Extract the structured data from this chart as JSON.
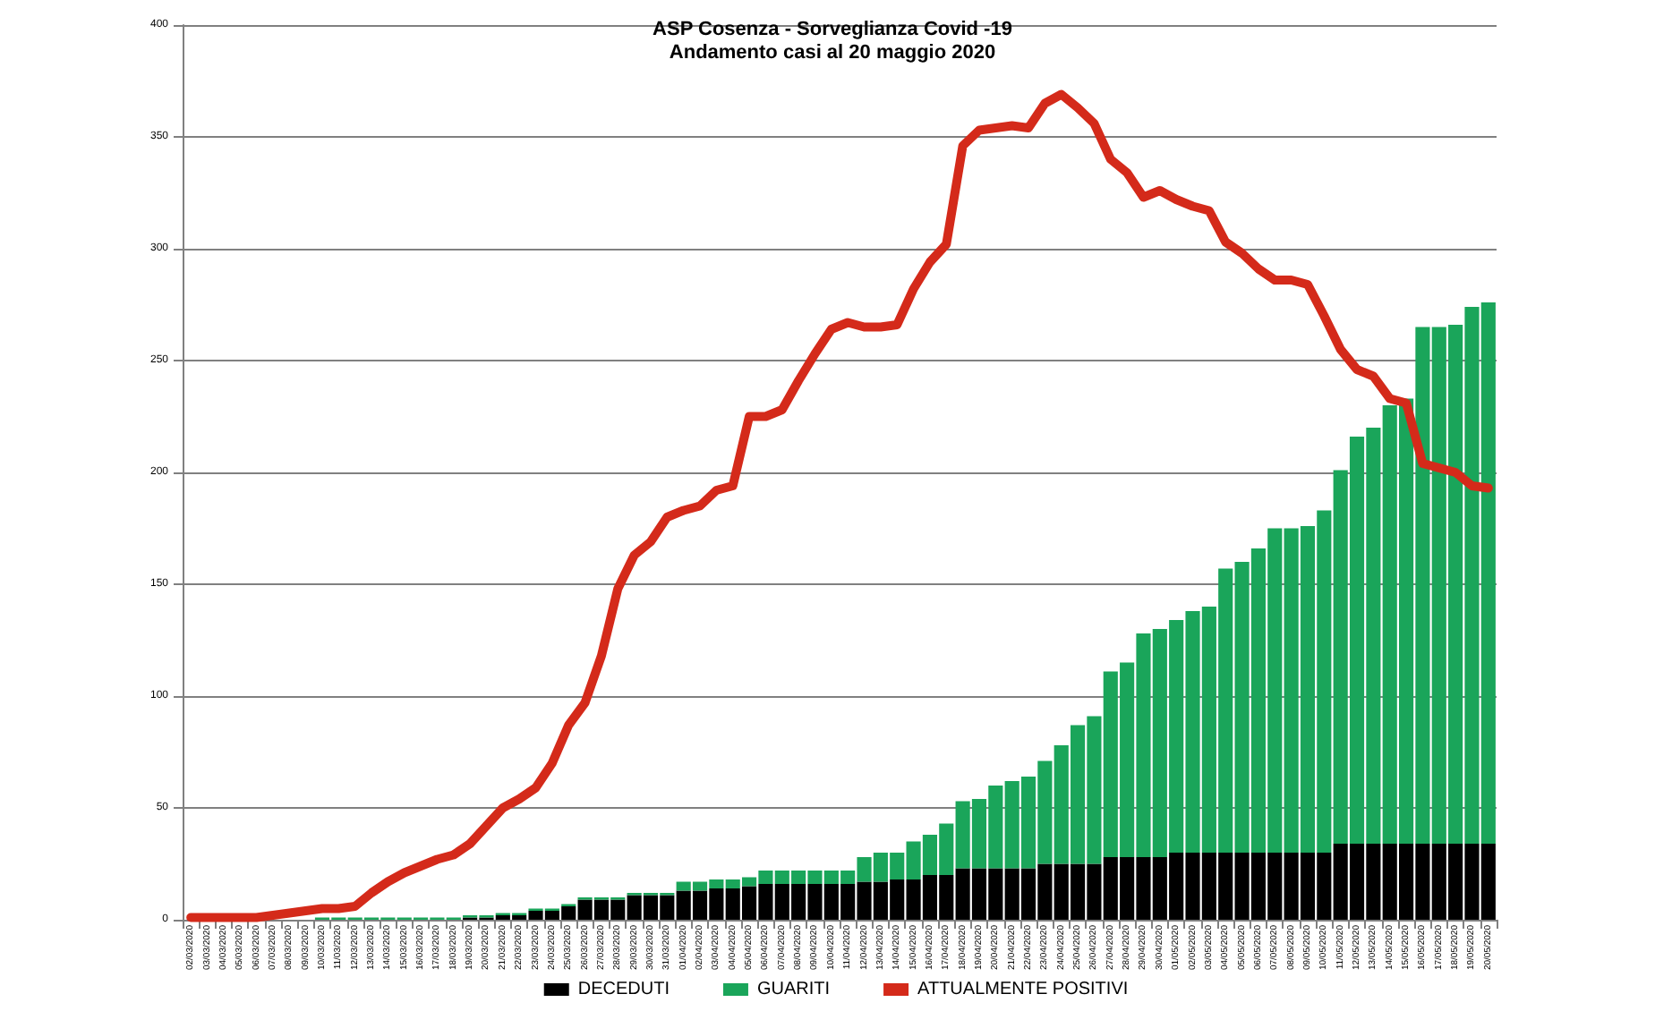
{
  "chart_data": {
    "type": "bar",
    "title": "ASP Cosenza - Sorveglianza Covid -19",
    "subtitle": "Andamento casi al 20 maggio 2020",
    "categories": [
      "02/03/2020",
      "03/03/2020",
      "04/03/2020",
      "05/03/2020",
      "06/03/2020",
      "07/03/2020",
      "08/03/2020",
      "09/03/2020",
      "10/03/2020",
      "11/03/2020",
      "12/03/2020",
      "13/03/2020",
      "14/03/2020",
      "15/03/2020",
      "16/03/2020",
      "17/03/2020",
      "18/03/2020",
      "19/03/2020",
      "20/03/2020",
      "21/03/2020",
      "22/03/2020",
      "23/03/2020",
      "24/03/2020",
      "25/03/2020",
      "26/03/2020",
      "27/03/2020",
      "28/03/2020",
      "29/03/2020",
      "30/03/2020",
      "31/03/2020",
      "01/04/2020",
      "02/04/2020",
      "03/04/2020",
      "04/04/2020",
      "05/04/2020",
      "06/04/2020",
      "07/04/2020",
      "08/04/2020",
      "09/04/2020",
      "10/04/2020",
      "11/04/2020",
      "12/04/2020",
      "13/04/2020",
      "14/04/2020",
      "15/04/2020",
      "16/04/2020",
      "17/04/2020",
      "18/04/2020",
      "19/04/2020",
      "20/04/2020",
      "21/04/2020",
      "22/04/2020",
      "23/04/2020",
      "24/04/2020",
      "25/04/2020",
      "26/04/2020",
      "27/04/2020",
      "28/04/2020",
      "29/04/2020",
      "30/04/2020",
      "01/05/2020",
      "02/05/2020",
      "03/05/2020",
      "04/05/2020",
      "05/05/2020",
      "06/05/2020",
      "07/05/2020",
      "08/05/2020",
      "09/05/2020",
      "10/05/2020",
      "11/05/2020",
      "12/05/2020",
      "13/05/2020",
      "14/05/2020",
      "15/05/2020",
      "16/05/2020",
      "17/05/2020",
      "18/05/2020",
      "19/05/2020",
      "20/05/2020"
    ],
    "stacked": true,
    "series": [
      {
        "name": "DECEDUTI",
        "color": "#000000",
        "values": [
          0,
          0,
          0,
          0,
          0,
          0,
          0,
          0,
          0,
          0,
          0,
          0,
          0,
          0,
          0,
          0,
          0,
          1,
          1,
          2,
          2,
          4,
          4,
          6,
          9,
          9,
          9,
          11,
          11,
          11,
          13,
          13,
          14,
          14,
          15,
          16,
          16,
          16,
          16,
          16,
          16,
          17,
          17,
          18,
          18,
          20,
          20,
          23,
          23,
          23,
          23,
          23,
          25,
          25,
          25,
          25,
          28,
          28,
          28,
          28,
          30,
          30,
          30,
          30,
          30,
          30,
          30,
          30,
          30,
          30,
          34,
          34,
          34,
          34,
          34,
          34,
          34,
          34,
          34,
          34
        ]
      },
      {
        "name": "GUARITI",
        "color": "#1aa55a",
        "values": [
          0,
          0,
          0,
          0,
          0,
          0,
          0,
          0,
          1,
          1,
          1,
          1,
          1,
          1,
          1,
          1,
          1,
          1,
          1,
          1,
          1,
          1,
          1,
          1,
          1,
          1,
          1,
          1,
          1,
          1,
          4,
          4,
          4,
          4,
          4,
          6,
          6,
          6,
          6,
          6,
          6,
          11,
          13,
          12,
          17,
          18,
          23,
          30,
          31,
          37,
          39,
          41,
          46,
          53,
          62,
          66,
          83,
          87,
          100,
          102,
          104,
          108,
          110,
          127,
          130,
          136,
          145,
          145,
          146,
          153,
          167,
          182,
          186,
          196,
          199,
          231,
          231,
          232,
          240,
          242
        ]
      },
      {
        "name": "ATTUALMENTE POSITIVI",
        "color": "#d42a1a",
        "type": "line",
        "marker": "none",
        "line_style": "solid",
        "values": [
          1,
          1,
          1,
          1,
          1,
          2,
          3,
          4,
          5,
          5,
          6,
          12,
          17,
          21,
          24,
          27,
          29,
          34,
          42,
          50,
          54,
          59,
          70,
          87,
          97,
          118,
          148,
          163,
          169,
          180,
          183,
          185,
          192,
          194,
          225,
          225,
          228,
          241,
          253,
          264,
          267,
          265,
          265,
          266,
          282,
          294,
          302,
          346,
          353,
          354,
          355,
          354,
          365,
          369,
          363,
          356,
          340,
          334,
          323,
          326,
          322,
          319,
          317,
          303,
          298,
          291,
          286,
          286,
          284,
          270,
          255,
          246,
          243,
          233,
          231,
          204,
          202,
          200,
          194,
          193
        ]
      }
    ],
    "ylim": [
      0,
      400
    ],
    "yticks": [
      0,
      50,
      100,
      150,
      200,
      250,
      300,
      350,
      400
    ],
    "grid": "y",
    "legend": "bottom"
  }
}
